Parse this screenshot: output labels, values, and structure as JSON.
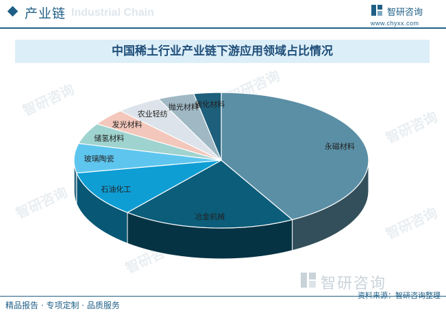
{
  "header": {
    "title": "产业链",
    "watermark": "Industrial Chain",
    "brand_name": "智研咨询",
    "brand_url": "www.chyxx.com"
  },
  "chart_data": {
    "type": "pie",
    "title": "中国稀土行业产业链下游应用领域占比情况",
    "categories": [
      "永磁材料",
      "冶金机械",
      "石油化工",
      "玻璃陶瓷",
      "储氢材料",
      "发光材料",
      "农业轻纺",
      "抛光材料",
      "催化材料"
    ],
    "values": [
      42,
      19,
      11,
      7,
      5,
      4,
      5,
      4,
      3
    ],
    "colors": [
      "#5b8fa6",
      "#0b5d7a",
      "#0e9ed4",
      "#5ec6ee",
      "#9fd3cf",
      "#f3c7bb",
      "#dce3ea",
      "#9fb8c4",
      "#1e5f7b"
    ],
    "legend": "none",
    "style": "3d"
  },
  "watermark_text": "智研咨询",
  "bottom_brand": "智研咨询",
  "footer": {
    "tagline": "精品报告 · 专项定制 · 品质服务",
    "source": "资料来源：智研咨询整理"
  }
}
